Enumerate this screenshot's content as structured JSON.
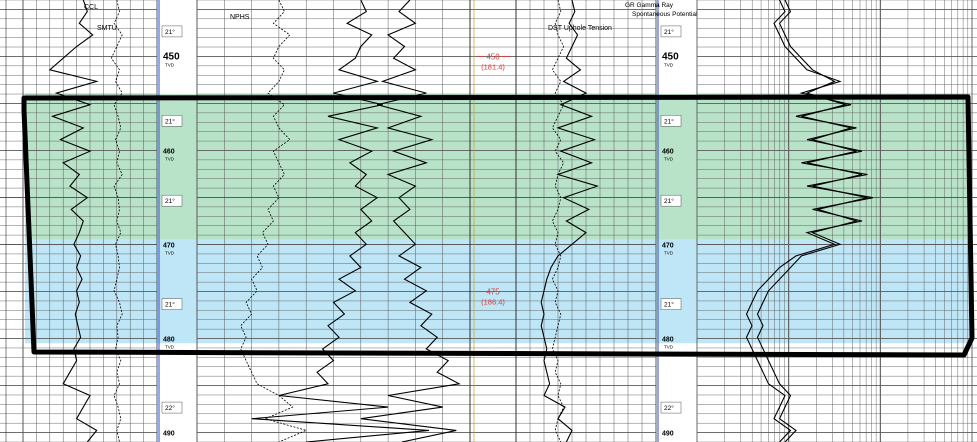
{
  "colors": {
    "zone_green": "#b9e3c9",
    "zone_blue": "#bfe6f7",
    "grid": "#5a5a5a",
    "depth_red": "#e03a3a",
    "inclination_blue": "#2a4fd8",
    "outline": "#000000",
    "curve": "#000000"
  },
  "header": {
    "track1_curve_top": "CCL",
    "track1_curve": "SMTU",
    "track2_curve": "NPHS",
    "track4_curve": "DST Uphole Tension",
    "track4_curve_b": "GR Gamma Ray",
    "track4_curve_c": "Spontaneous Potential"
  },
  "depth_markers": [
    {
      "label": "450",
      "sub": "(181.4)"
    },
    {
      "label": "475",
      "sub": "(186.4)"
    }
  ],
  "chart_data": {
    "type": "line",
    "depth_unit": "TVD",
    "depth_range": [
      444,
      491
    ],
    "zones": [
      {
        "name": "green",
        "top": 454,
        "bottom": 469.5
      },
      {
        "name": "blue",
        "top": 469.5,
        "bottom": 480.5
      }
    ],
    "left_depth_track": {
      "ticks": [
        {
          "depth": 450,
          "label": "450",
          "unit": "TVD"
        },
        {
          "depth": 460,
          "label": "460",
          "unit": "TVD"
        },
        {
          "depth": 470,
          "label": "470",
          "unit": "TVD"
        },
        {
          "depth": 480,
          "label": "480",
          "unit": "TVD"
        },
        {
          "depth": 490,
          "label": "490",
          "unit": ""
        }
      ],
      "inclinations": [
        {
          "depth": 447.5,
          "label": "21°"
        },
        {
          "depth": 457,
          "label": "21°"
        },
        {
          "depth": 465.5,
          "label": "21°"
        },
        {
          "depth": 476.5,
          "label": "21°"
        },
        {
          "depth": 487.5,
          "label": "22°"
        }
      ]
    },
    "right_depth_track": {
      "ticks": [
        {
          "depth": 450,
          "label": "450",
          "unit": "TVD"
        },
        {
          "depth": 460,
          "label": "460",
          "unit": "TVD"
        },
        {
          "depth": 470,
          "label": "470",
          "unit": "TVD"
        },
        {
          "depth": 480,
          "label": "480",
          "unit": "TVD"
        },
        {
          "depth": 490,
          "label": "490",
          "unit": ""
        }
      ],
      "inclinations": [
        {
          "depth": 447.5,
          "label": "21°"
        },
        {
          "depth": 457,
          "label": "21°"
        },
        {
          "depth": 465.5,
          "label": "21°"
        },
        {
          "depth": 476.5,
          "label": "21°"
        },
        {
          "depth": 487.5,
          "label": "22°"
        }
      ]
    },
    "series": [
      {
        "track": 1,
        "style": "solid",
        "values": [
          0.45,
          0.48,
          0.42,
          0.52,
          0.4,
          0.3,
          0.2,
          0.55,
          0.25,
          0.5,
          0.22,
          0.45,
          0.28,
          0.5,
          0.3,
          0.42,
          0.35,
          0.48,
          0.36,
          0.45,
          0.42,
          0.38,
          0.43,
          0.4,
          0.44,
          0.4,
          0.42,
          0.39,
          0.41,
          0.43,
          0.38,
          0.4,
          0.35,
          0.3,
          0.5,
          0.45,
          0.4,
          0.55,
          0.48
        ]
      },
      {
        "track": 1,
        "style": "dashed",
        "values": [
          0.7,
          0.72,
          0.68,
          0.74,
          0.7,
          0.66,
          0.72,
          0.69,
          0.74,
          0.68,
          0.71,
          0.73,
          0.69,
          0.72,
          0.7,
          0.74,
          0.68,
          0.71,
          0.72,
          0.7,
          0.73,
          0.69,
          0.71,
          0.72,
          0.7,
          0.68,
          0.72,
          0.74,
          0.7,
          0.71,
          0.69,
          0.73,
          0.7,
          0.72,
          0.68,
          0.71,
          0.73,
          0.7,
          0.72
        ]
      },
      {
        "track": 2,
        "style": "solid",
        "values": [
          0.6,
          0.62,
          0.55,
          0.64,
          0.6,
          0.58,
          0.52,
          0.66,
          0.5,
          0.68,
          0.48,
          0.66,
          0.52,
          0.64,
          0.56,
          0.62,
          0.58,
          0.66,
          0.6,
          0.64,
          0.58,
          0.62,
          0.56,
          0.6,
          0.52,
          0.58,
          0.5,
          0.54,
          0.48,
          0.52,
          0.46,
          0.5,
          0.44,
          0.48,
          0.3,
          0.7,
          0.2,
          0.85,
          0.4
        ]
      },
      {
        "track": 2,
        "style": "solid",
        "values": [
          0.78,
          0.74,
          0.8,
          0.7,
          0.76,
          0.72,
          0.8,
          0.68,
          0.84,
          0.66,
          0.82,
          0.7,
          0.86,
          0.72,
          0.84,
          0.7,
          0.8,
          0.74,
          0.78,
          0.72,
          0.76,
          0.8,
          0.74,
          0.82,
          0.76,
          0.84,
          0.78,
          0.86,
          0.82,
          0.88,
          0.84,
          0.92,
          0.88,
          0.96,
          0.7,
          0.9,
          0.6,
          0.95,
          0.75
        ]
      },
      {
        "track": 2,
        "style": "dashed",
        "values": [
          0.3,
          0.32,
          0.28,
          0.34,
          0.3,
          0.28,
          0.32,
          0.3,
          0.26,
          0.32,
          0.28,
          0.3,
          0.34,
          0.28,
          0.3,
          0.32,
          0.28,
          0.3,
          0.26,
          0.28,
          0.24,
          0.26,
          0.22,
          0.24,
          0.2,
          0.22,
          0.18,
          0.2,
          0.16,
          0.18,
          0.16,
          0.18,
          0.2,
          0.22,
          0.3,
          0.35,
          0.25,
          0.4,
          0.3
        ]
      },
      {
        "track": 4,
        "style": "solid",
        "values": [
          0.4,
          0.42,
          0.38,
          0.44,
          0.4,
          0.36,
          0.46,
          0.34,
          0.5,
          0.32,
          0.54,
          0.3,
          0.56,
          0.32,
          0.54,
          0.3,
          0.58,
          0.34,
          0.52,
          0.36,
          0.5,
          0.4,
          0.3,
          0.25,
          0.22,
          0.2,
          0.18,
          0.2,
          0.18,
          0.2,
          0.22,
          0.2,
          0.22,
          0.24,
          0.2,
          0.35,
          0.3,
          0.4,
          0.36
        ]
      },
      {
        "track": 4,
        "style": "dashed",
        "values": [
          0.3,
          0.32,
          0.28,
          0.3,
          0.34,
          0.3,
          0.26,
          0.32,
          0.28,
          0.34,
          0.3,
          0.26,
          0.32,
          0.28,
          0.34,
          0.3,
          0.28,
          0.32,
          0.3,
          0.26,
          0.3,
          0.28,
          0.32,
          0.3,
          0.26,
          0.3,
          0.28,
          0.32,
          0.3,
          0.28,
          0.26,
          0.3,
          0.28,
          0.32,
          0.3,
          0.34,
          0.3,
          0.28,
          0.32
        ]
      },
      {
        "track": 5,
        "style": "solid",
        "values": [
          0.3,
          0.32,
          0.28,
          0.3,
          0.32,
          0.36,
          0.4,
          0.52,
          0.38,
          0.56,
          0.36,
          0.58,
          0.4,
          0.6,
          0.38,
          0.62,
          0.4,
          0.64,
          0.42,
          0.6,
          0.4,
          0.5,
          0.36,
          0.3,
          0.26,
          0.22,
          0.2,
          0.18,
          0.2,
          0.18,
          0.2,
          0.22,
          0.24,
          0.26,
          0.32,
          0.3,
          0.28,
          0.34,
          0.3
        ]
      },
      {
        "track": 5,
        "style": "solid",
        "values": [
          0.32,
          0.34,
          0.3,
          0.32,
          0.34,
          0.38,
          0.42,
          0.5,
          0.4,
          0.54,
          0.38,
          0.56,
          0.42,
          0.58,
          0.4,
          0.6,
          0.42,
          0.62,
          0.44,
          0.58,
          0.42,
          0.52,
          0.38,
          0.34,
          0.3,
          0.26,
          0.24,
          0.22,
          0.24,
          0.22,
          0.24,
          0.26,
          0.28,
          0.3,
          0.34,
          0.32,
          0.3,
          0.36,
          0.32
        ]
      }
    ]
  }
}
